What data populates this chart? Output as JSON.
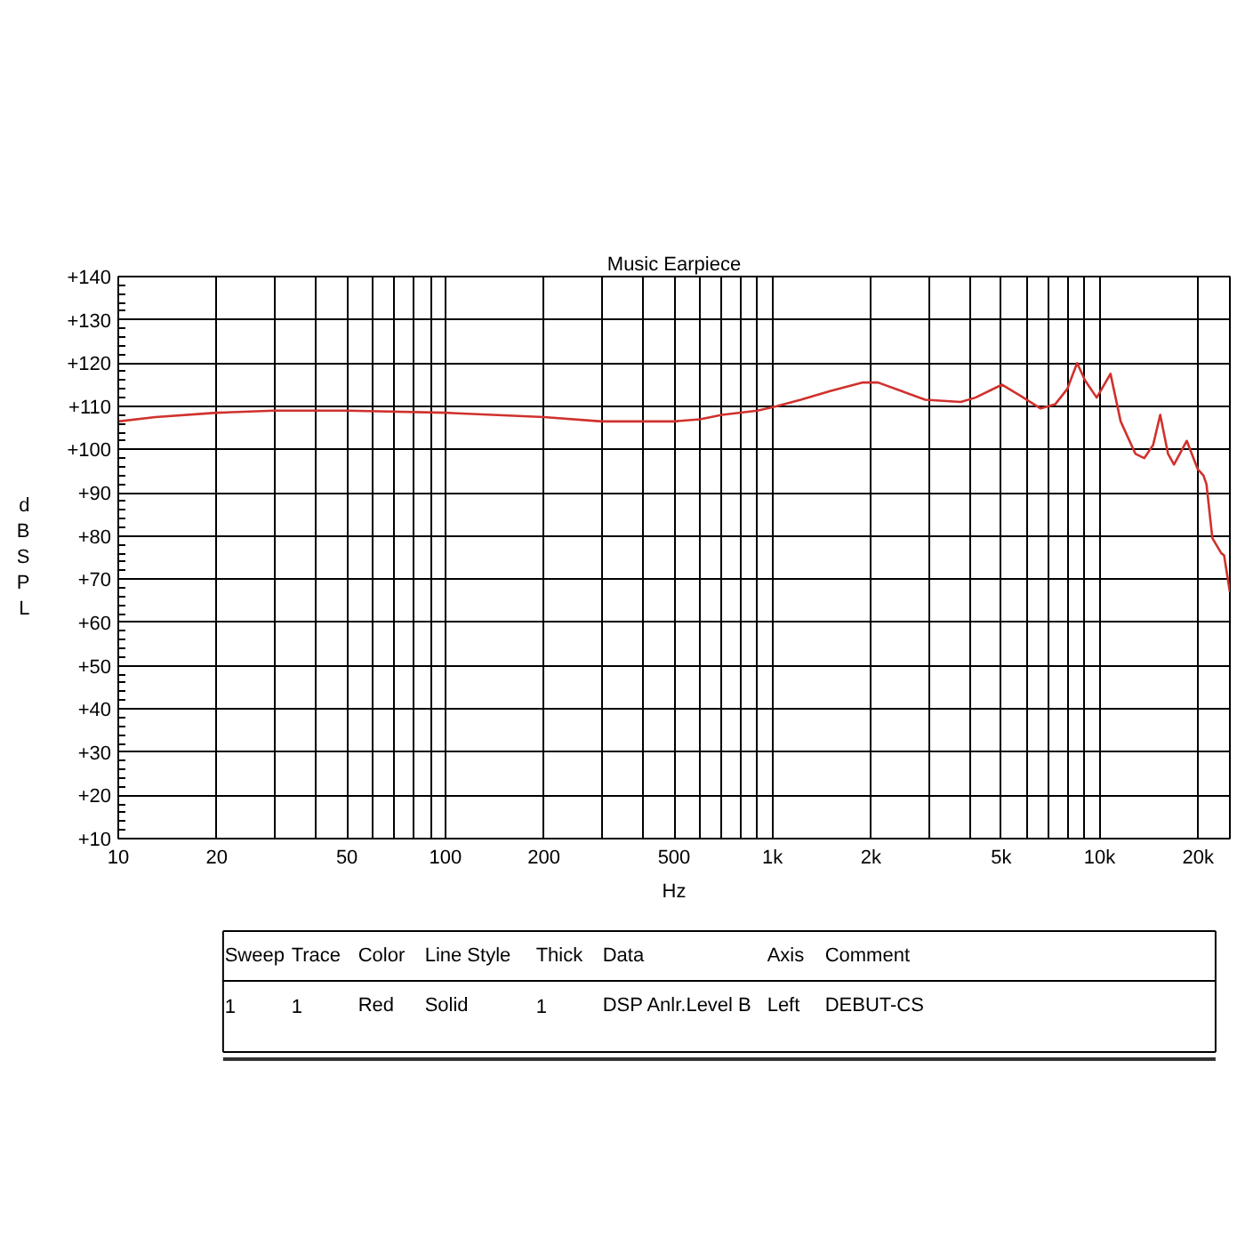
{
  "chart_data": {
    "type": "line",
    "title": "Music Earpiece",
    "xlabel": "Hz",
    "ylabel": "dBSPL",
    "log": "x",
    "grid": true,
    "xlim": [
      10,
      25000
    ],
    "ylim": [
      10,
      140
    ],
    "xticks": [
      10,
      20,
      {
        "value": 30,
        "label": null
      },
      {
        "value": 40,
        "label": null
      },
      50,
      {
        "value": 60,
        "label": null
      },
      {
        "value": 70,
        "label": null
      },
      {
        "value": 80,
        "label": null
      },
      {
        "value": 90,
        "label": null
      },
      100,
      200,
      {
        "value": 300,
        "label": null
      },
      {
        "value": 400,
        "label": null
      },
      500,
      {
        "value": 600,
        "label": null
      },
      {
        "value": 700,
        "label": null
      },
      {
        "value": 800,
        "label": null
      },
      {
        "value": 900,
        "label": null
      },
      {
        "value": 1000,
        "label": "1k"
      },
      {
        "value": 2000,
        "label": "2k"
      },
      {
        "value": 3000,
        "label": null
      },
      {
        "value": 4000,
        "label": null
      },
      {
        "value": 5000,
        "label": "5k"
      },
      {
        "value": 6000,
        "label": null
      },
      {
        "value": 7000,
        "label": null
      },
      {
        "value": 8000,
        "label": null
      },
      {
        "value": 9000,
        "label": null
      },
      {
        "value": 10000,
        "label": "10k"
      },
      {
        "value": 20000,
        "label": "20k"
      }
    ],
    "yticks": [
      {
        "value": 10,
        "label": "+10"
      },
      {
        "value": 20,
        "label": "+20"
      },
      {
        "value": 30,
        "label": "+30"
      },
      {
        "value": 40,
        "label": "+40"
      },
      {
        "value": 50,
        "label": "+50"
      },
      {
        "value": 60,
        "label": "+60"
      },
      {
        "value": 70,
        "label": "+70"
      },
      {
        "value": 80,
        "label": "+80"
      },
      {
        "value": 90,
        "label": "+90"
      },
      {
        "value": 100,
        "label": "+100"
      },
      {
        "value": 110,
        "label": "+110"
      },
      {
        "value": 120,
        "label": "+120"
      },
      {
        "value": 130,
        "label": "+130"
      },
      {
        "value": 140,
        "label": "+140"
      }
    ],
    "x": [
      10,
      13,
      20,
      30,
      50,
      100,
      200,
      300,
      500,
      600,
      700,
      900,
      1030,
      1220,
      1500,
      1890,
      2100,
      2480,
      2930,
      3760,
      4170,
      5030,
      5700,
      6600,
      7320,
      7960,
      8530,
      9020,
      9790,
      10790,
      11590,
      12860,
      13680,
      14560,
      15310,
      16180,
      16870,
      18460,
      19920,
      20750,
      21200,
      22100,
      23540,
      24000,
      25000
    ],
    "values": [
      106.5,
      107.5,
      108.5,
      109,
      109,
      108.5,
      107.5,
      106.5,
      106.5,
      107,
      108,
      109,
      110,
      111.5,
      113.5,
      115.5,
      115.5,
      113.5,
      111.5,
      111,
      112,
      115,
      112.5,
      109.5,
      110.5,
      114,
      120,
      116,
      112,
      117.5,
      106.5,
      99,
      98,
      101,
      108,
      99,
      96.5,
      102,
      95.5,
      94,
      92,
      79.5,
      76,
      75.5,
      67
    ],
    "color": "#d0312d",
    "line_style": "solid",
    "annotations": [
      "Sweep",
      "Trace",
      "Color",
      "Line Style",
      "Thick",
      "Data",
      "Axis",
      "Comment",
      "1",
      "1",
      "Red",
      "Solid",
      "1",
      "DSP Anlr.Level B",
      "Left",
      "DEBUT-CS"
    ]
  }
}
